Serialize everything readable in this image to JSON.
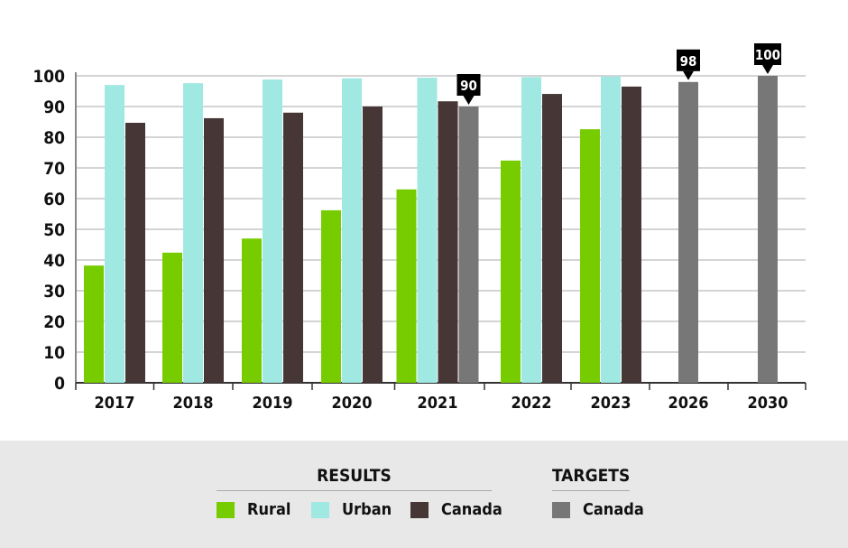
{
  "chart_data": {
    "type": "bar",
    "categories": [
      "2017",
      "2018",
      "2019",
      "2020",
      "2021",
      "2022",
      "2023",
      "2026",
      "2030"
    ],
    "ylim": [
      0,
      100
    ],
    "yticks": [
      "0",
      "10",
      "20",
      "30",
      "40",
      "50",
      "60",
      "70",
      "80",
      "90",
      "100"
    ],
    "grid": true,
    "series": [
      {
        "name": "Rural",
        "group": "Results",
        "color": "#77cc00",
        "values": [
          38.2,
          42.4,
          47,
          56.2,
          63,
          72.4,
          82.6,
          null,
          null
        ]
      },
      {
        "name": "Urban",
        "group": "Results",
        "color": "#a0e8e2",
        "values": [
          97,
          97.6,
          98.8,
          99.2,
          99.4,
          99.6,
          99.8,
          null,
          null
        ]
      },
      {
        "name": "Canada",
        "group": "Results",
        "color": "#463636",
        "values": [
          84.7,
          86.2,
          88,
          90,
          91.7,
          94.1,
          96.5,
          null,
          null
        ]
      },
      {
        "name": "Canada",
        "group": "Targets",
        "color": "#777777",
        "values": [
          null,
          null,
          null,
          null,
          90,
          null,
          null,
          98,
          100
        ]
      }
    ],
    "annotations": [
      "90",
      "98",
      "100"
    ],
    "legend": {
      "placement": "bottom",
      "results_title": "RESULTS",
      "targets_title": "TARGETS",
      "results": [
        "Rural",
        "Urban",
        "Canada"
      ],
      "targets": [
        "Canada"
      ]
    }
  }
}
